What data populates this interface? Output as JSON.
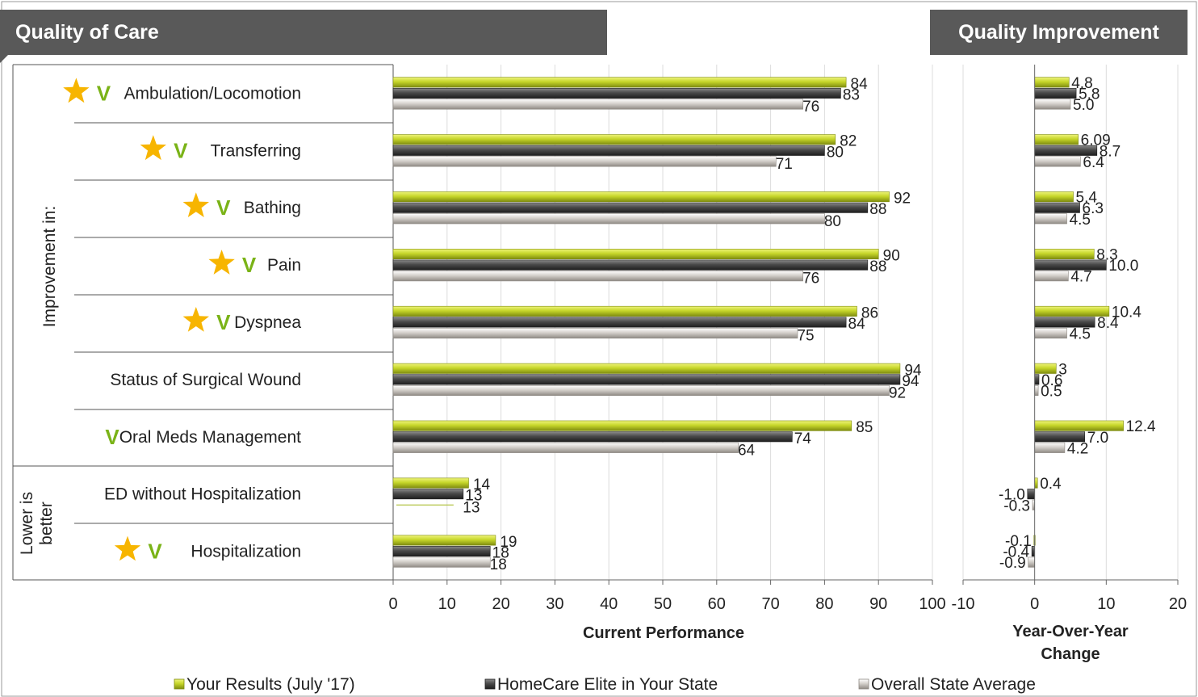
{
  "header": {
    "quality_of_care": "Quality of Care",
    "quality_improvement": "Quality Improvement"
  },
  "groups": {
    "improvement": "Improvement in:",
    "lower_line1": "Lower is",
    "lower_line2": "better"
  },
  "colors": {
    "your_results": "#c6d62a",
    "elite": "#4a4a4a",
    "state_avg": "#c8c3bd",
    "star": "#f7b500",
    "check": "#7ab317",
    "header_bg": "#595959"
  },
  "icons": {
    "star": "star-icon",
    "check": "check-icon"
  },
  "legend": [
    "Your Results (July '17)",
    "HomeCare Elite in Your State",
    "Overall State Average"
  ],
  "chart_data": [
    {
      "type": "bar",
      "orientation": "horizontal",
      "xlabel": "Current Performance",
      "xlim": [
        0,
        100
      ],
      "xticks": [
        0,
        10,
        20,
        30,
        40,
        50,
        60,
        70,
        80,
        90,
        100
      ],
      "categories": [
        "Ambulation/Locomotion",
        "Transferring",
        "Bathing",
        "Pain",
        "Dyspnea",
        "Status of Surgical Wound",
        "Oral Meds Management",
        "ED without Hospitalization",
        "Hospitalization"
      ],
      "series": [
        {
          "name": "Your Results (July '17)",
          "values": [
            84,
            82,
            92,
            90,
            86,
            94,
            85,
            14,
            19
          ],
          "labels": [
            "84",
            "82",
            "92",
            "90",
            "86",
            "94",
            "85",
            "14",
            "19"
          ]
        },
        {
          "name": "HomeCare Elite in Your State",
          "values": [
            83,
            80,
            88,
            88,
            84,
            94,
            74,
            13,
            18
          ],
          "labels": [
            "83",
            "80",
            "88",
            "88",
            "84",
            "94",
            "74",
            "13",
            "18"
          ]
        },
        {
          "name": "Overall State Average",
          "values": [
            76,
            71,
            80,
            76,
            75,
            92,
            64,
            13,
            18
          ],
          "labels": [
            "76",
            "71",
            "80",
            "76",
            "75",
            "92",
            "64",
            "13",
            "18"
          ]
        }
      ],
      "star": [
        true,
        true,
        true,
        true,
        true,
        false,
        false,
        false,
        true
      ],
      "check": [
        true,
        true,
        true,
        true,
        true,
        false,
        true,
        false,
        true
      ],
      "grid": true
    },
    {
      "type": "bar",
      "orientation": "horizontal",
      "xlabel": "Year-Over-Year Change",
      "xlim": [
        -10,
        20
      ],
      "xticks": [
        -10,
        0,
        10,
        20
      ],
      "categories": [
        "Ambulation/Locomotion",
        "Transferring",
        "Bathing",
        "Pain",
        "Dyspnea",
        "Status of Surgical Wound",
        "Oral Meds Management",
        "ED without Hospitalization",
        "Hospitalization"
      ],
      "series": [
        {
          "name": "Your Results (July '17)",
          "values": [
            4.8,
            6.09,
            5.4,
            8.3,
            10.4,
            3,
            12.4,
            0.4,
            -0.1
          ],
          "labels": [
            "4.8",
            "6.09",
            "5.4",
            "8.3",
            "10.4",
            "3",
            "12.4",
            "0.4",
            "-0.1"
          ]
        },
        {
          "name": "HomeCare Elite in Your State",
          "values": [
            5.8,
            8.7,
            6.3,
            10.0,
            8.4,
            0.6,
            7.0,
            -1.0,
            -0.4
          ],
          "labels": [
            "5.8",
            "8.7",
            "6.3",
            "10.0",
            "8.4",
            "0.6",
            "7.0",
            "-1.0",
            "-0.4"
          ]
        },
        {
          "name": "Overall State Average",
          "values": [
            5.0,
            6.4,
            4.5,
            4.7,
            4.5,
            0.5,
            4.2,
            -0.3,
            -0.9
          ],
          "labels": [
            "5.0",
            "6.4",
            "4.5",
            "4.7",
            "4.5",
            "0.5",
            "4.2",
            "-0.3",
            "-0.9"
          ]
        }
      ],
      "grid": true
    }
  ]
}
